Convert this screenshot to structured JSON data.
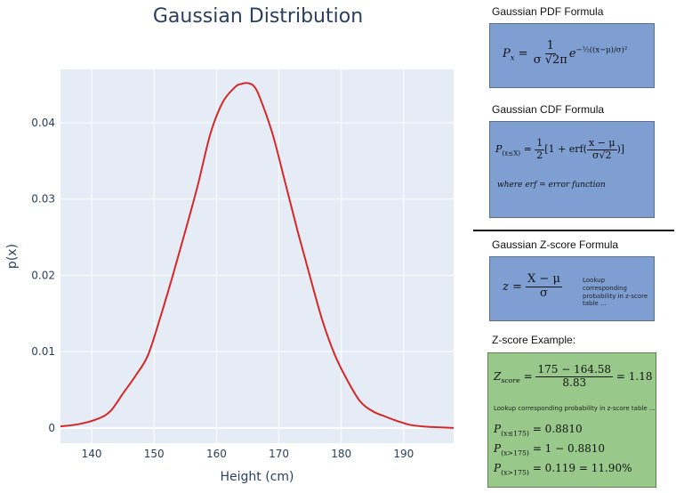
{
  "chart_data": {
    "type": "line",
    "title": "Gaussian Distribution",
    "xlabel": "Height (cm)",
    "ylabel": "p(x)",
    "xlim": [
      135,
      198
    ],
    "ylim": [
      -0.002,
      0.047
    ],
    "xticks": [
      140,
      150,
      160,
      170,
      180,
      190
    ],
    "yticks": [
      0,
      0.01,
      0.02,
      0.03,
      0.04
    ],
    "ytick_labels": [
      "0",
      "0.01",
      "0.02",
      "0.03",
      "0.04"
    ],
    "grid": true,
    "line_color": "#d62728",
    "background": "#e5ecf6",
    "series": [
      {
        "x": [
          135,
          138,
          141,
          143,
          145,
          147,
          149,
          151,
          153,
          155,
          157,
          159,
          161,
          163,
          164,
          165,
          166,
          167,
          169,
          171,
          173,
          175,
          177,
          179,
          181,
          183,
          185,
          187,
          189,
          191,
          193,
          195,
          198
        ],
        "y": [
          0.0002,
          0.0005,
          0.0012,
          0.0022,
          0.0045,
          0.0068,
          0.0095,
          0.0145,
          0.02,
          0.0258,
          0.0318,
          0.0385,
          0.0427,
          0.0447,
          0.0451,
          0.0452,
          0.0448,
          0.0432,
          0.0385,
          0.0322,
          0.0258,
          0.0198,
          0.014,
          0.0095,
          0.0062,
          0.0035,
          0.0022,
          0.0015,
          0.0009,
          0.0004,
          0.0002,
          0.0001,
          0.0
        ]
      }
    ]
  },
  "panels": {
    "pdf_title": "Gaussian PDF Formula",
    "cdf_title": "Gaussian CDF Formula",
    "z_title": "Gaussian Z-score Formula",
    "example_title": "Z-score Example:",
    "pdf": {
      "P": "P",
      "x": "x",
      "eq": "=",
      "one": "1",
      "den": "σ √2π",
      "e": "e",
      "exp": "−½((x−μ)/σ)²"
    },
    "cdf": {
      "P": "P",
      "sub": "(x≤X)",
      "eq": "=",
      "half_num": "1",
      "half_den": "2",
      "bracket": "[1 + erf(",
      "num": "x − μ",
      "den": "σ√2",
      "close": ")]",
      "note": "where erf = error function"
    },
    "z": {
      "z": "z",
      "eq": "=",
      "num": "X − μ",
      "den": "σ",
      "note": "Lookup corresponding probability in z-score table ..."
    },
    "example": {
      "Z": "Z",
      "sub": "score",
      "eq": "=",
      "num": "175 − 164.58",
      "den": "8.83",
      "result": "= 1.18",
      "note": "Lookup corresponding probability in z-score table ...",
      "line1_sub": "(x≤175)",
      "line1_val": "= 0.8810",
      "line2_sub": "(x>175)",
      "line2_val": "= 1 − 0.8810",
      "line3_sub": "(x>175)",
      "line3_val": "= 0.119 = 11.90%"
    }
  }
}
